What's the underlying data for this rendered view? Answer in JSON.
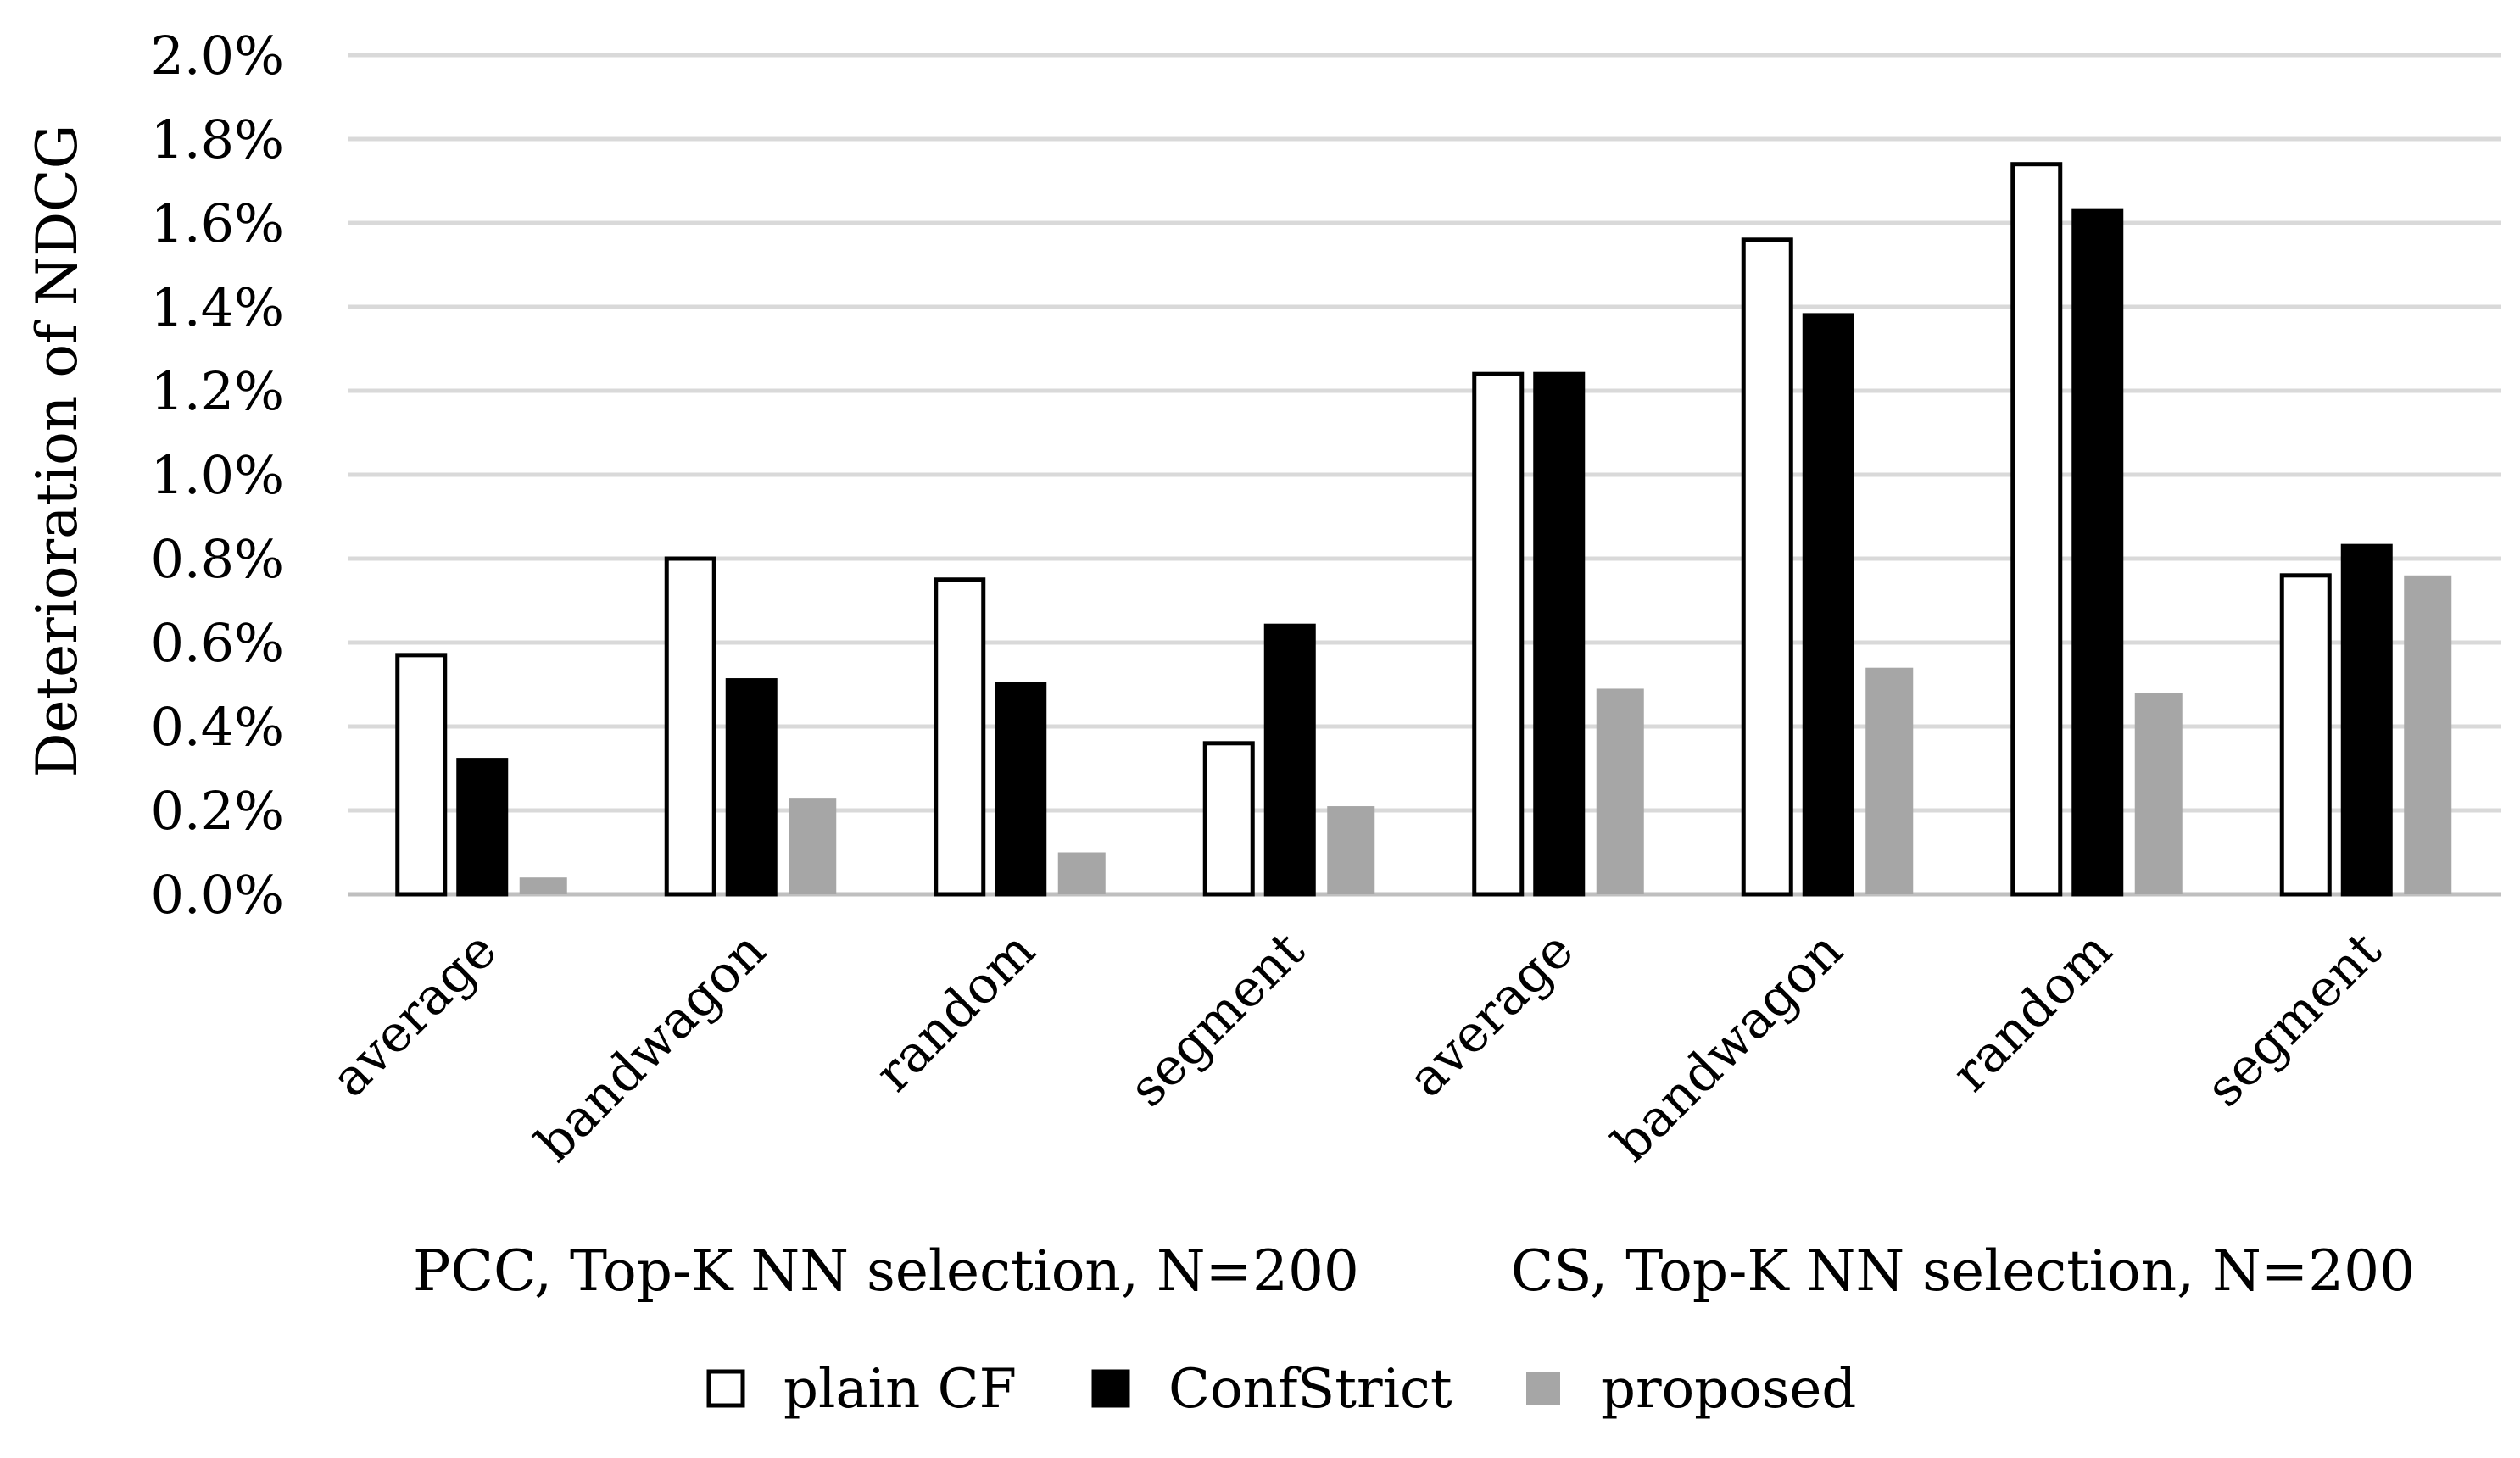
{
  "chart_data": {
    "type": "bar",
    "ylabel": "Deterioration of NDCG",
    "ylim": [
      0,
      2.0
    ],
    "yticks": [
      "0.0%",
      "0.2%",
      "0.4%",
      "0.6%",
      "0.8%",
      "1.0%",
      "1.2%",
      "1.4%",
      "1.6%",
      "1.8%",
      "2.0%"
    ],
    "grid": true,
    "legend_position": "bottom",
    "categories": [
      "average",
      "bandwagon",
      "random",
      "segment",
      "average",
      "bandwagon",
      "random",
      "segment"
    ],
    "groups": [
      {
        "label": "PCC, Top-K NN selection, N=200",
        "categories": 4
      },
      {
        "label": "CS, Top-K NN selection, N=200",
        "categories": 4
      }
    ],
    "series": [
      {
        "name": "plain CF",
        "color": "#ffffff",
        "stroke": "#000000",
        "values": [
          0.57,
          0.8,
          0.75,
          0.36,
          1.24,
          1.56,
          1.74,
          0.76
        ]
      },
      {
        "name": "ConfStrict",
        "color": "#000000",
        "stroke": "#000000",
        "values": [
          0.32,
          0.51,
          0.5,
          0.64,
          1.24,
          1.38,
          1.63,
          0.83
        ]
      },
      {
        "name": "proposed",
        "color": "#a6a6a6",
        "stroke": "none",
        "values": [
          0.04,
          0.23,
          0.1,
          0.21,
          0.49,
          0.54,
          0.48,
          0.76
        ]
      }
    ]
  }
}
